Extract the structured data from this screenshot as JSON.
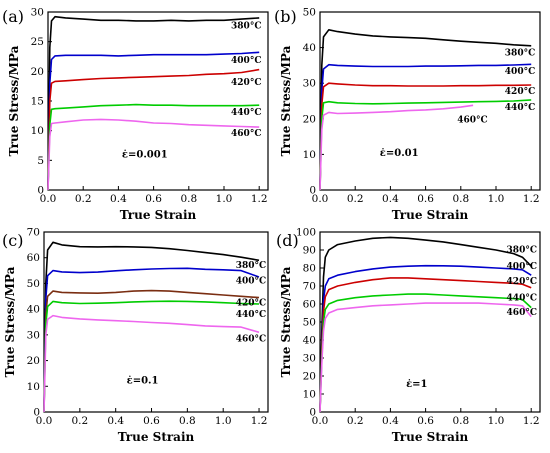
{
  "colors": {
    "380°C": "#000000",
    "400°C": "#0000cc",
    "420°C": "#cc0000",
    "440°C": "#00cc00",
    "460°C": "#ee66ee",
    "brown": "#7a2e12"
  },
  "chart_data": [
    {
      "panel_label": "(a)",
      "type": "line",
      "xlabel": "True Strain",
      "ylabel": "True Stress/MPa",
      "xlim": [
        0,
        1.25
      ],
      "ylim": [
        0,
        30
      ],
      "xticks": [
        0.0,
        0.2,
        0.4,
        0.6,
        0.8,
        1.0,
        1.2
      ],
      "yticks": [
        0,
        5,
        10,
        15,
        20,
        25,
        30
      ],
      "rate_label": "ε̇=0.001",
      "series": [
        {
          "name": "380°C",
          "color": "#000000",
          "x": [
            0,
            0.01,
            0.02,
            0.04,
            0.1,
            0.2,
            0.3,
            0.4,
            0.5,
            0.6,
            0.7,
            0.8,
            0.9,
            1.0,
            1.1,
            1.2
          ],
          "y": [
            0,
            24,
            28.5,
            29.2,
            29.0,
            28.8,
            28.6,
            28.6,
            28.5,
            28.5,
            28.6,
            28.5,
            28.6,
            28.6,
            28.8,
            29.0
          ]
        },
        {
          "name": "400°C",
          "color": "#0000cc",
          "x": [
            0,
            0.01,
            0.02,
            0.04,
            0.1,
            0.2,
            0.3,
            0.4,
            0.5,
            0.6,
            0.7,
            0.8,
            0.9,
            1.0,
            1.1,
            1.2
          ],
          "y": [
            0,
            18,
            22.0,
            22.6,
            22.7,
            22.7,
            22.7,
            22.6,
            22.7,
            22.8,
            22.8,
            22.8,
            22.8,
            22.9,
            23.0,
            23.2
          ]
        },
        {
          "name": "420°C",
          "color": "#cc0000",
          "x": [
            0,
            0.01,
            0.02,
            0.04,
            0.1,
            0.2,
            0.3,
            0.4,
            0.5,
            0.6,
            0.7,
            0.8,
            0.9,
            1.0,
            1.1,
            1.2
          ],
          "y": [
            0,
            15,
            18.0,
            18.3,
            18.4,
            18.6,
            18.8,
            18.9,
            19.0,
            19.1,
            19.2,
            19.3,
            19.5,
            19.6,
            19.8,
            20.3
          ]
        },
        {
          "name": "440°C",
          "color": "#00cc00",
          "x": [
            0,
            0.01,
            0.02,
            0.04,
            0.1,
            0.2,
            0.3,
            0.4,
            0.5,
            0.6,
            0.7,
            0.8,
            0.9,
            1.0,
            1.1,
            1.2
          ],
          "y": [
            0,
            11,
            13.6,
            13.7,
            13.8,
            14.0,
            14.2,
            14.3,
            14.4,
            14.3,
            14.3,
            14.2,
            14.2,
            14.2,
            14.2,
            14.3
          ]
        },
        {
          "name": "460°C",
          "color": "#ee66ee",
          "x": [
            0,
            0.01,
            0.02,
            0.04,
            0.1,
            0.2,
            0.3,
            0.4,
            0.5,
            0.6,
            0.7,
            0.8,
            0.9,
            1.0,
            1.1,
            1.2
          ],
          "y": [
            0,
            9,
            11.2,
            11.3,
            11.5,
            11.8,
            11.9,
            11.8,
            11.6,
            11.3,
            11.2,
            11.0,
            10.9,
            10.8,
            10.7,
            10.6
          ]
        }
      ],
      "labels": [
        {
          "text": "380°C",
          "x": 1.04,
          "y": 27.2
        },
        {
          "text": "400°C",
          "x": 1.04,
          "y": 21.4
        },
        {
          "text": "420°C",
          "x": 1.04,
          "y": 17.7
        },
        {
          "text": "440°C",
          "x": 1.04,
          "y": 12.6
        },
        {
          "text": "460°C",
          "x": 1.04,
          "y": 9.1
        }
      ],
      "rate_pos": {
        "x": 0.55,
        "y": 5.5
      }
    },
    {
      "panel_label": "(b)",
      "type": "line",
      "xlabel": "True Strain",
      "ylabel": "True Stress/MPa",
      "xlim": [
        0,
        1.25
      ],
      "ylim": [
        0,
        50
      ],
      "xticks": [
        0.0,
        0.2,
        0.4,
        0.6,
        0.8,
        1.0,
        1.2
      ],
      "yticks": [
        0,
        10,
        20,
        30,
        40,
        50
      ],
      "rate_label": "ε̇=0.01",
      "series": [
        {
          "name": "380°C",
          "color": "#000000",
          "x": [
            0,
            0.01,
            0.02,
            0.05,
            0.1,
            0.2,
            0.3,
            0.4,
            0.5,
            0.6,
            0.7,
            0.8,
            0.9,
            1.0,
            1.1,
            1.2
          ],
          "y": [
            0,
            35,
            43,
            45.0,
            44.5,
            43.8,
            43.3,
            43.0,
            42.8,
            42.6,
            42.2,
            41.8,
            41.5,
            41.2,
            40.8,
            40.5
          ]
        },
        {
          "name": "400°C",
          "color": "#0000cc",
          "x": [
            0,
            0.01,
            0.02,
            0.05,
            0.1,
            0.2,
            0.3,
            0.4,
            0.5,
            0.6,
            0.7,
            0.8,
            0.9,
            1.0,
            1.1,
            1.2
          ],
          "y": [
            0,
            28,
            34,
            35.2,
            35.0,
            34.8,
            34.7,
            34.7,
            34.7,
            34.8,
            34.8,
            34.9,
            35.0,
            35.0,
            35.1,
            35.3
          ]
        },
        {
          "name": "420°C",
          "color": "#cc0000",
          "x": [
            0,
            0.01,
            0.02,
            0.05,
            0.1,
            0.2,
            0.3,
            0.4,
            0.5,
            0.6,
            0.7,
            0.8,
            0.9,
            1.0,
            1.1,
            1.2
          ],
          "y": [
            0,
            24,
            29,
            30.0,
            29.8,
            29.5,
            29.3,
            29.3,
            29.2,
            29.2,
            29.2,
            29.3,
            29.3,
            29.4,
            29.4,
            29.5
          ]
        },
        {
          "name": "440°C",
          "color": "#00cc00",
          "x": [
            0,
            0.01,
            0.02,
            0.05,
            0.1,
            0.2,
            0.3,
            0.4,
            0.5,
            0.6,
            0.7,
            0.8,
            0.9,
            1.0,
            1.1,
            1.2
          ],
          "y": [
            0,
            20,
            24.5,
            24.8,
            24.5,
            24.3,
            24.2,
            24.3,
            24.4,
            24.5,
            24.6,
            24.7,
            24.8,
            24.9,
            25.0,
            25.3
          ]
        },
        {
          "name": "460°C",
          "color": "#ee66ee",
          "x": [
            0,
            0.01,
            0.02,
            0.05,
            0.1,
            0.2,
            0.3,
            0.4,
            0.5,
            0.6,
            0.7,
            0.8,
            0.87
          ],
          "y": [
            0,
            17,
            21,
            21.8,
            21.5,
            21.6,
            21.8,
            22.0,
            22.3,
            22.5,
            22.8,
            23.3,
            23.8
          ]
        }
      ],
      "labels": [
        {
          "text": "380°C",
          "x": 1.05,
          "y": 37.8
        },
        {
          "text": "400°C",
          "x": 1.05,
          "y": 32.6
        },
        {
          "text": "420°C",
          "x": 1.05,
          "y": 27.0
        },
        {
          "text": "440°C",
          "x": 1.05,
          "y": 22.5
        },
        {
          "text": "460°C",
          "x": 0.78,
          "y": 19.0
        }
      ],
      "rate_pos": {
        "x": 0.45,
        "y": 9.5
      }
    },
    {
      "panel_label": "(c)",
      "type": "line",
      "xlabel": "True Strain",
      "ylabel": "True Stress/MPa",
      "xlim": [
        0,
        1.25
      ],
      "ylim": [
        0,
        70
      ],
      "xticks": [
        0.0,
        0.2,
        0.4,
        0.6,
        0.8,
        1.0,
        1.2
      ],
      "yticks": [
        0,
        10,
        20,
        30,
        40,
        50,
        60,
        70
      ],
      "rate_label": "ε̇=0.1",
      "series": [
        {
          "name": "380°C",
          "color": "#000000",
          "x": [
            0,
            0.01,
            0.02,
            0.05,
            0.1,
            0.2,
            0.3,
            0.4,
            0.5,
            0.6,
            0.7,
            0.8,
            0.9,
            1.0,
            1.1,
            1.2
          ],
          "y": [
            0,
            50,
            63,
            66.0,
            65.0,
            64.3,
            64.2,
            64.3,
            64.2,
            64.0,
            63.5,
            62.8,
            62.0,
            61.2,
            60.2,
            59.0
          ]
        },
        {
          "name": "400°C",
          "color": "#0000cc",
          "x": [
            0,
            0.01,
            0.02,
            0.05,
            0.1,
            0.2,
            0.3,
            0.4,
            0.5,
            0.6,
            0.7,
            0.8,
            0.9,
            1.0,
            1.1,
            1.2
          ],
          "y": [
            0,
            44,
            53,
            55.0,
            54.5,
            54.2,
            54.4,
            54.9,
            55.3,
            55.6,
            55.8,
            55.9,
            55.5,
            55.3,
            55.0,
            52.5
          ]
        },
        {
          "name": "420°C",
          "color": "#7a2e12",
          "x": [
            0,
            0.01,
            0.02,
            0.05,
            0.1,
            0.2,
            0.3,
            0.4,
            0.5,
            0.6,
            0.7,
            0.8,
            0.9,
            1.0,
            1.1,
            1.2
          ],
          "y": [
            0,
            38,
            45,
            47.0,
            46.5,
            46.3,
            46.2,
            46.5,
            47.0,
            47.2,
            47.0,
            46.5,
            46.0,
            45.5,
            45.0,
            44.5
          ]
        },
        {
          "name": "440°C",
          "color": "#00cc00",
          "x": [
            0,
            0.01,
            0.02,
            0.05,
            0.1,
            0.2,
            0.3,
            0.4,
            0.5,
            0.6,
            0.7,
            0.8,
            0.9,
            1.0,
            1.1,
            1.2
          ],
          "y": [
            0,
            34,
            41,
            43.0,
            42.5,
            42.2,
            42.3,
            42.5,
            42.8,
            43.0,
            43.1,
            43.0,
            42.8,
            42.5,
            42.2,
            42.0
          ]
        },
        {
          "name": "460°C",
          "color": "#ee66ee",
          "x": [
            0,
            0.01,
            0.02,
            0.05,
            0.1,
            0.2,
            0.3,
            0.4,
            0.5,
            0.6,
            0.7,
            0.8,
            0.9,
            1.0,
            1.1,
            1.2
          ],
          "y": [
            0,
            30,
            36,
            37.5,
            36.8,
            36.2,
            35.8,
            35.5,
            35.2,
            34.8,
            34.5,
            34.0,
            33.5,
            33.2,
            33.0,
            31.0
          ]
        }
      ],
      "labels": [
        {
          "text": "380°C",
          "x": 1.07,
          "y": 56.0
        },
        {
          "text": "400°C",
          "x": 1.07,
          "y": 50.0
        },
        {
          "text": "420°C",
          "x": 1.07,
          "y": 41.5
        },
        {
          "text": "440°C",
          "x": 1.07,
          "y": 37.0
        },
        {
          "text": "460°C",
          "x": 1.07,
          "y": 27.5
        }
      ],
      "rate_pos": {
        "x": 0.55,
        "y": 11.0
      }
    },
    {
      "panel_label": "(d)",
      "type": "line",
      "xlabel": "True Strain",
      "ylabel": "True Stress/MPa",
      "xlim": [
        0,
        1.25
      ],
      "ylim": [
        0,
        100
      ],
      "xticks": [
        0.0,
        0.2,
        0.4,
        0.6,
        0.8,
        1.0,
        1.2
      ],
      "yticks": [
        0,
        10,
        20,
        30,
        40,
        50,
        60,
        70,
        80,
        90,
        100
      ],
      "rate_label": "ε̇=1",
      "series": [
        {
          "name": "380°C",
          "color": "#000000",
          "x": [
            0,
            0.01,
            0.02,
            0.03,
            0.05,
            0.1,
            0.2,
            0.3,
            0.4,
            0.5,
            0.6,
            0.7,
            0.8,
            0.9,
            1.0,
            1.1,
            1.15,
            1.2
          ],
          "y": [
            0,
            45,
            75,
            86,
            90,
            93,
            95,
            96.5,
            97,
            96.5,
            95.5,
            94.5,
            93,
            91.5,
            90,
            88,
            86,
            81
          ]
        },
        {
          "name": "400°C",
          "color": "#0000cc",
          "x": [
            0,
            0.01,
            0.02,
            0.03,
            0.05,
            0.1,
            0.2,
            0.3,
            0.4,
            0.5,
            0.6,
            0.7,
            0.8,
            0.9,
            1.0,
            1.1,
            1.15,
            1.2
          ],
          "y": [
            0,
            38,
            62,
            70,
            74,
            76,
            78,
            79.5,
            80.5,
            81,
            81.3,
            81.2,
            81,
            80.5,
            80,
            79.5,
            79,
            76
          ]
        },
        {
          "name": "420°C",
          "color": "#cc0000",
          "x": [
            0,
            0.01,
            0.02,
            0.03,
            0.05,
            0.1,
            0.2,
            0.3,
            0.4,
            0.5,
            0.6,
            0.7,
            0.8,
            0.9,
            1.0,
            1.1,
            1.15,
            1.2
          ],
          "y": [
            0,
            35,
            56,
            64,
            68,
            70,
            72,
            73.5,
            74.5,
            74.5,
            74,
            73.5,
            73,
            72.5,
            72,
            71.5,
            71,
            69
          ]
        },
        {
          "name": "440°C",
          "color": "#00cc00",
          "x": [
            0,
            0.01,
            0.02,
            0.03,
            0.05,
            0.1,
            0.2,
            0.3,
            0.4,
            0.5,
            0.6,
            0.7,
            0.8,
            0.9,
            1.0,
            1.1,
            1.15,
            1.2
          ],
          "y": [
            0,
            30,
            50,
            57,
            60,
            62,
            63.5,
            64.5,
            65,
            65.5,
            65.5,
            65,
            64.5,
            64,
            63.5,
            63,
            62.5,
            58
          ]
        },
        {
          "name": "460°C",
          "color": "#ee66ee",
          "x": [
            0,
            0.01,
            0.02,
            0.03,
            0.05,
            0.1,
            0.2,
            0.3,
            0.4,
            0.5,
            0.6,
            0.7,
            0.8,
            0.9,
            1.0,
            1.1,
            1.15,
            1.2
          ],
          "y": [
            0,
            27,
            45,
            52,
            55,
            57,
            58,
            59,
            59.5,
            60,
            60.5,
            60.5,
            60.5,
            60.5,
            60,
            59.5,
            59,
            53
          ]
        }
      ],
      "labels": [
        {
          "text": "380°C",
          "x": 1.06,
          "y": 88.5
        },
        {
          "text": "400°C",
          "x": 1.06,
          "y": 79.5
        },
        {
          "text": "420°C",
          "x": 1.06,
          "y": 71.0
        },
        {
          "text": "440°C",
          "x": 1.06,
          "y": 62.0
        },
        {
          "text": "460°C",
          "x": 1.06,
          "y": 54.0
        }
      ],
      "rate_pos": {
        "x": 0.55,
        "y": 14.0
      }
    }
  ]
}
